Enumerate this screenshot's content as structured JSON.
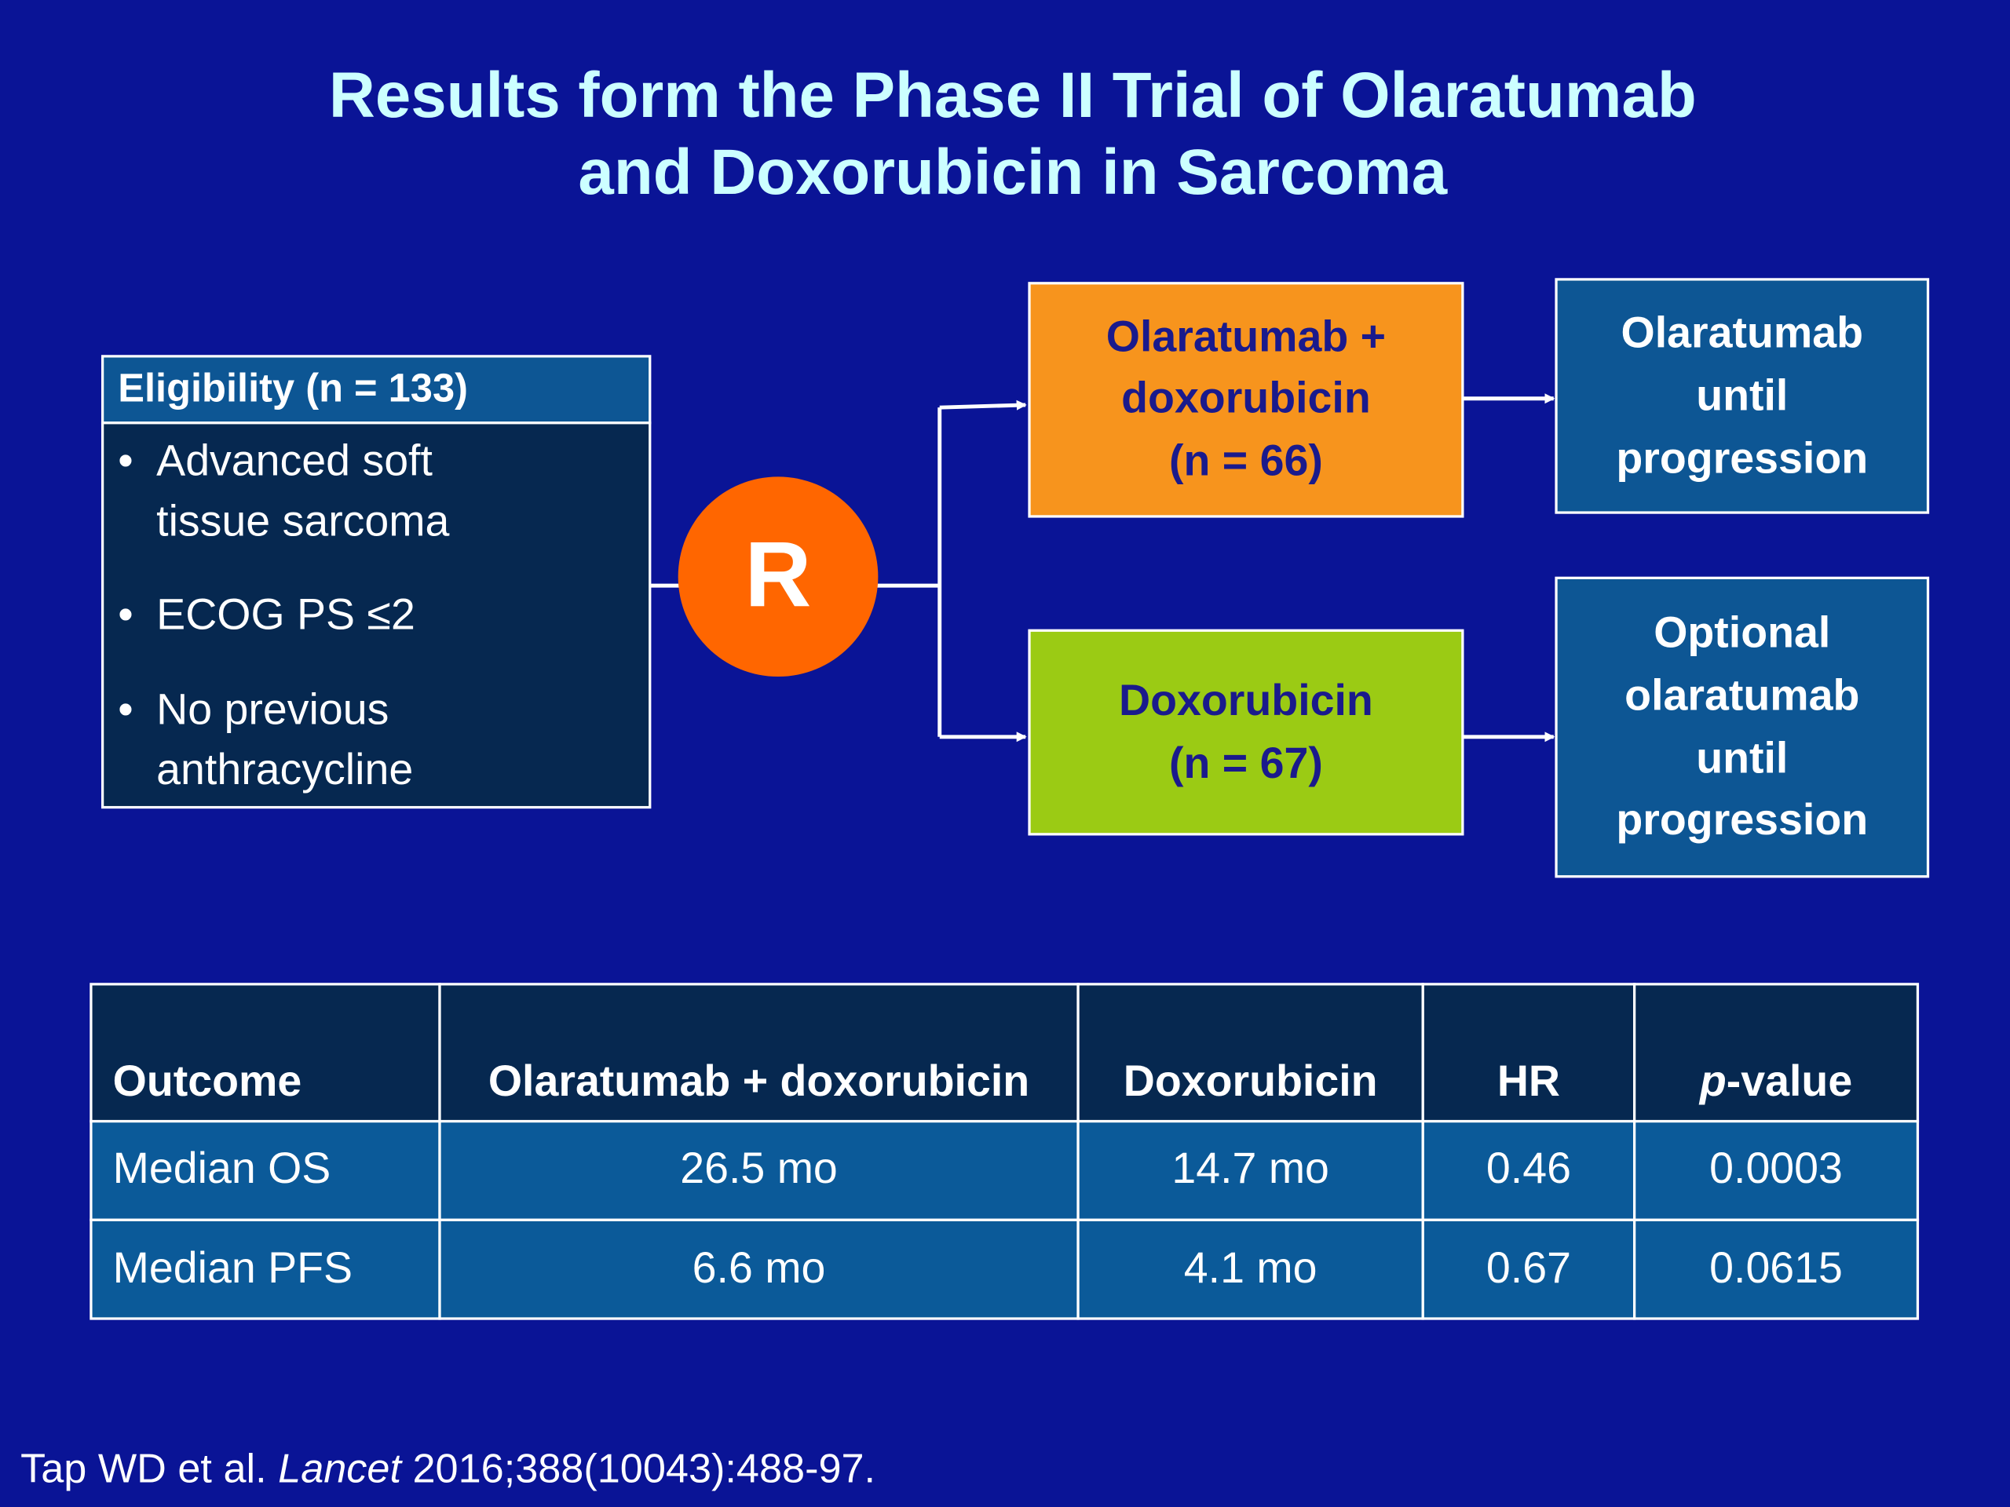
{
  "title": [
    "Results form the Phase II Trial of Olaratumab",
    "and Doxorubicin in Sarcoma"
  ],
  "eligibility": {
    "header": "Eligibility (n = 133)",
    "bullets": [
      [
        "Advanced soft",
        "tissue sarcoma"
      ],
      [
        "ECOG PS ≤2"
      ],
      [
        "No previous",
        "anthracycline"
      ]
    ]
  },
  "randomization": "R",
  "arms": [
    {
      "label": [
        "Olaratumab +",
        "doxorubicin",
        "(n = 66)"
      ],
      "followup": [
        "Olaratumab",
        "until",
        "progression"
      ]
    },
    {
      "label": [
        "Doxorubicin",
        "(n = 67)"
      ],
      "followup": [
        "Optional",
        "olaratumab",
        "until",
        "progression"
      ]
    }
  ],
  "table": {
    "header": [
      "Outcome",
      "Olaratumab + doxorubicin",
      "Doxorubicin",
      "HR",
      [
        "p",
        "-value"
      ]
    ],
    "rows": [
      [
        "Median OS",
        "26.5 mo",
        "14.7 mo",
        "0.46",
        "0.0003"
      ],
      [
        "Median PFS",
        "6.6 mo",
        "4.1 mo",
        "0.67",
        "0.0615"
      ]
    ]
  },
  "citation": [
    "Tap WD et al. ",
    "Lancet",
    " 2016;388(10043):488-97."
  ]
}
